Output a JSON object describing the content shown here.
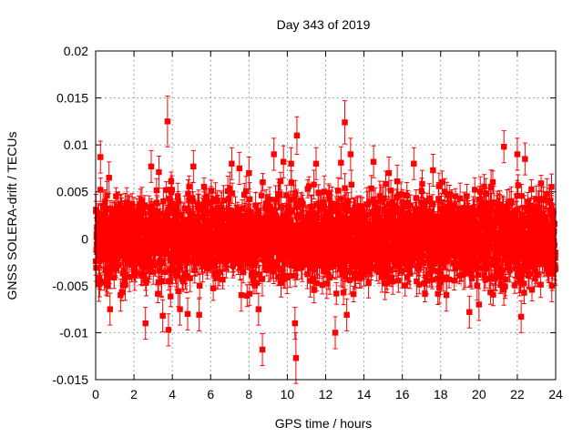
{
  "chart_data": {
    "type": "scatter",
    "title": "Day 343 of 2019",
    "xlabel": "GPS time / hours",
    "ylabel": "GNSS SOLERA-drift / TECUs",
    "xlim": [
      0,
      24
    ],
    "ylim": [
      -0.015,
      0.02
    ],
    "x_ticks": [
      "0",
      "2",
      "4",
      "6",
      "8",
      "10",
      "12",
      "14",
      "16",
      "18",
      "20",
      "22",
      "24"
    ],
    "y_ticks": [
      "-0.015",
      "-0.01",
      "-0.005",
      "0",
      "0.005",
      "0.01",
      "0.015",
      "0.02"
    ],
    "grid": true,
    "marker_color": "#ff0000",
    "series": [
      {
        "name": "SOLERA-drift",
        "points_note": "dense scatter of approx. 2900 points (30 s sampling) with error bars, centred on 0, bulk within about ±0.005 TECU",
        "x": [
          0.25,
          0.7,
          0.75,
          1.3,
          2.6,
          2.9,
          3.3,
          3.5,
          3.75,
          3.8,
          4.4,
          4.8,
          5.1,
          5.4,
          7.1,
          7.5,
          7.6,
          8.0,
          8.5,
          8.7,
          9.3,
          9.8,
          10.2,
          10.4,
          10.45,
          10.5,
          11.5,
          12.5,
          12.8,
          13.0,
          13.1,
          13.3,
          14.5,
          15.3,
          16.6,
          17.6,
          18.3,
          19.5,
          20.0,
          21.3,
          22.0,
          22.2,
          22.4,
          23.8
        ],
        "y": [
          0.0087,
          0.0065,
          -0.0075,
          -0.006,
          -0.009,
          0.0077,
          0.0071,
          -0.0082,
          0.0125,
          -0.0097,
          -0.0075,
          -0.008,
          0.0077,
          -0.0081,
          0.008,
          0.0075,
          -0.006,
          0.007,
          -0.0075,
          -0.0118,
          0.009,
          0.0082,
          0.008,
          -0.009,
          -0.0127,
          0.011,
          0.008,
          -0.01,
          0.0081,
          0.0124,
          -0.0081,
          0.009,
          0.0082,
          0.007,
          0.008,
          0.0073,
          -0.006,
          -0.0078,
          -0.007,
          0.0098,
          0.009,
          -0.0083,
          0.0085,
          -0.005
        ],
        "err": [
          0.0017,
          0.0017,
          0.0017,
          0.0017,
          0.0017,
          0.0017,
          0.0017,
          0.0017,
          0.0027,
          0.0017,
          0.0017,
          0.0017,
          0.0017,
          0.0017,
          0.0017,
          0.0017,
          0.0017,
          0.0017,
          0.0017,
          0.0017,
          0.0017,
          0.0017,
          0.0017,
          0.0017,
          0.0027,
          0.002,
          0.0017,
          0.0017,
          0.0017,
          0.0023,
          0.0017,
          0.0017,
          0.0017,
          0.0017,
          0.0017,
          0.0017,
          0.0017,
          0.0017,
          0.0017,
          0.0017,
          0.0017,
          0.0017,
          0.0017,
          0.0017
        ],
        "bulk": {
          "count": 2880,
          "mean": 0.0,
          "sigma": 0.0022,
          "clip": 0.0062,
          "err_min": 0.0008,
          "err_max": 0.0018,
          "seed": 343
        }
      }
    ]
  }
}
